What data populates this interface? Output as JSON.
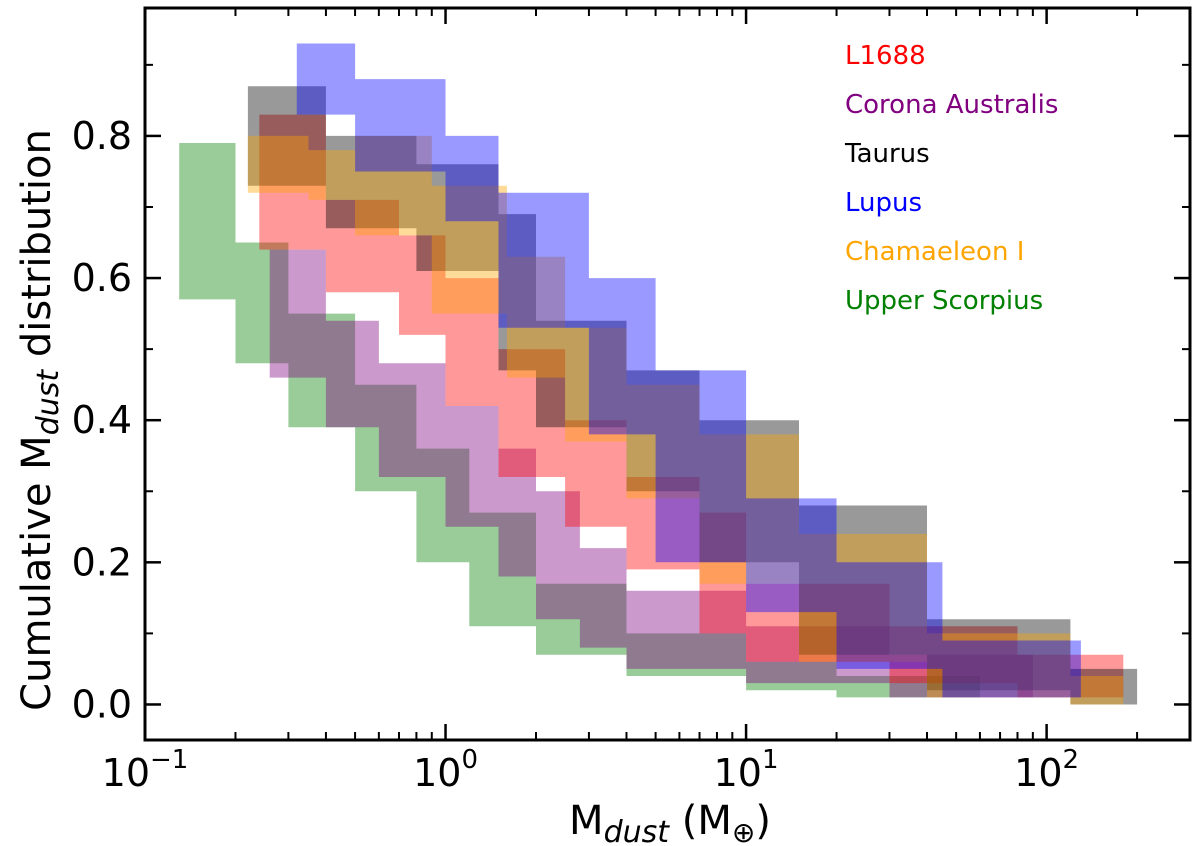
{
  "chart_data": {
    "type": "area",
    "title": "",
    "xlabel": {
      "base": "M",
      "sub": "dust",
      "unit": "(M",
      "unit_sym": "⊕",
      "unit_close": ")"
    },
    "ylabel": {
      "prefix": "Cumulative M",
      "sub": "dust",
      "suffix": " distribution"
    },
    "xscale": "log",
    "xlim": [
      0.1,
      300
    ],
    "ylim": [
      -0.05,
      0.98
    ],
    "grid": false,
    "legend_position": "top-right",
    "x_ticks": [
      {
        "value": 0.1,
        "base": "10",
        "exp": "−1"
      },
      {
        "value": 1,
        "base": "10",
        "exp": "0"
      },
      {
        "value": 10,
        "base": "10",
        "exp": "1"
      },
      {
        "value": 100,
        "base": "10",
        "exp": "2"
      }
    ],
    "y_ticks": [
      {
        "value": 0.0,
        "label": "0.0"
      },
      {
        "value": 0.2,
        "label": "0.2"
      },
      {
        "value": 0.4,
        "label": "0.4"
      },
      {
        "value": 0.6,
        "label": "0.6"
      },
      {
        "value": 0.8,
        "label": "0.8"
      }
    ],
    "series": [
      {
        "name": "Upper Scorpius",
        "color": "#008000",
        "legend_color": "#008000",
        "opacity": 0.4,
        "x": [
          0.13,
          0.2,
          0.3,
          0.5,
          0.8,
          1.2,
          2.0,
          4.0,
          10,
          20,
          60
        ],
        "upper": [
          0.79,
          0.65,
          0.55,
          0.45,
          0.36,
          0.27,
          0.17,
          0.1,
          0.06,
          0.04,
          0.03
        ],
        "lower": [
          0.71,
          0.57,
          0.48,
          0.39,
          0.3,
          0.2,
          0.11,
          0.07,
          0.04,
          0.02,
          0.01
        ]
      },
      {
        "name": "Corona Australis",
        "color": "#800080",
        "legend_color": "#800080",
        "opacity": 0.4,
        "x": [
          0.26,
          0.4,
          0.6,
          1.0,
          1.5,
          2.0,
          2.8,
          4.0,
          10,
          30,
          90
        ],
        "upper": [
          0.64,
          0.54,
          0.48,
          0.42,
          0.36,
          0.3,
          0.22,
          0.16,
          0.11,
          0.07,
          0.05
        ],
        "lower": [
          0.55,
          0.46,
          0.39,
          0.32,
          0.25,
          0.18,
          0.12,
          0.08,
          0.05,
          0.03,
          0.01
        ]
      },
      {
        "name": "L1688",
        "color": "#ff0000",
        "legend_color": "#ff0000",
        "opacity": 0.4,
        "x": [
          0.24,
          0.4,
          0.7,
          1.0,
          1.5,
          2.5,
          4.0,
          7.0,
          10,
          30,
          80,
          180
        ],
        "upper": [
          0.83,
          0.71,
          0.66,
          0.6,
          0.5,
          0.4,
          0.32,
          0.27,
          0.17,
          0.11,
          0.07,
          0.02
        ],
        "lower": [
          0.75,
          0.64,
          0.58,
          0.52,
          0.42,
          0.32,
          0.25,
          0.19,
          0.1,
          0.06,
          0.03,
          0.01
        ]
      },
      {
        "name": "Taurus",
        "color": "#000000",
        "legend_color": "#000000",
        "opacity": 0.4,
        "x": [
          0.22,
          0.4,
          0.8,
          1.5,
          2.0,
          4.0,
          7.0,
          15,
          40,
          120,
          200
        ],
        "upper": [
          0.87,
          0.8,
          0.76,
          0.69,
          0.54,
          0.47,
          0.4,
          0.28,
          0.12,
          0.05,
          0.01
        ],
        "lower": [
          0.8,
          0.73,
          0.67,
          0.61,
          0.47,
          0.39,
          0.3,
          0.2,
          0.07,
          0.02,
          0.0
        ]
      },
      {
        "name": "Chamaeleon I",
        "color": "#ffa500",
        "legend_color": "#ffa500",
        "opacity": 0.4,
        "x": [
          0.22,
          0.35,
          0.5,
          0.9,
          1.6,
          2.5,
          4.0,
          7.0,
          15,
          40,
          120,
          180
        ],
        "upper": [
          0.8,
          0.78,
          0.8,
          0.73,
          0.63,
          0.53,
          0.45,
          0.38,
          0.24,
          0.1,
          0.04,
          0.02
        ],
        "lower": [
          0.75,
          0.72,
          0.71,
          0.66,
          0.55,
          0.46,
          0.37,
          0.29,
          0.17,
          0.06,
          0.01,
          0.0
        ]
      },
      {
        "name": "Lupus",
        "color": "#0000ff",
        "legend_color": "#0000ff",
        "opacity": 0.4,
        "x": [
          0.32,
          0.5,
          1.0,
          1.5,
          3.0,
          5.0,
          10,
          20,
          45,
          130
        ],
        "upper": [
          0.93,
          0.88,
          0.8,
          0.72,
          0.6,
          0.47,
          0.29,
          0.2,
          0.09,
          0.03
        ],
        "lower": [
          0.88,
          0.83,
          0.75,
          0.68,
          0.53,
          0.38,
          0.2,
          0.13,
          0.05,
          0.01
        ]
      }
    ],
    "legend_order": [
      "L1688",
      "Corona Australis",
      "Taurus",
      "Lupus",
      "Chamaeleon I",
      "Upper Scorpius"
    ]
  }
}
